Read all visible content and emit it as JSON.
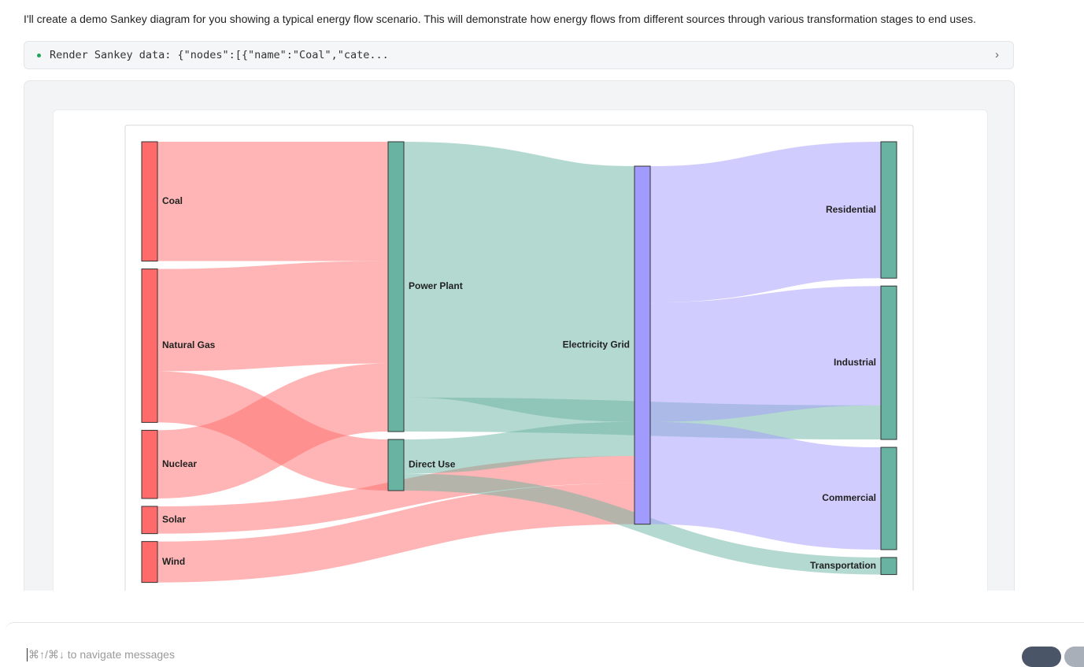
{
  "message": {
    "text": "I'll create a demo Sankey diagram for you showing a typical energy flow scenario. This will demonstrate how energy flows from different sources through various transformation stages to end uses."
  },
  "tool_call": {
    "label": "Render Sankey data: {\"nodes\":[{\"name\":\"Coal\",\"cate..."
  },
  "sankey": {
    "nodes": [
      {
        "name": "Coal",
        "color": "#ff6b6b",
        "column": 0
      },
      {
        "name": "Natural Gas",
        "color": "#ff6b6b",
        "column": 0
      },
      {
        "name": "Nuclear",
        "color": "#ff6b6b",
        "column": 0
      },
      {
        "name": "Solar",
        "color": "#ff6b6b",
        "column": 0
      },
      {
        "name": "Wind",
        "color": "#ff6b6b",
        "column": 0
      },
      {
        "name": "Power Plant",
        "color": "#69b3a2",
        "column": 1
      },
      {
        "name": "Direct Use",
        "color": "#69b3a2",
        "column": 1
      },
      {
        "name": "Electricity Grid",
        "color": "#a29bfe",
        "column": 2
      },
      {
        "name": "Residential",
        "color": "#69b3a2",
        "column": 3
      },
      {
        "name": "Industrial",
        "color": "#69b3a2",
        "column": 3
      },
      {
        "name": "Commercial",
        "color": "#69b3a2",
        "column": 3
      },
      {
        "name": "Transportation",
        "color": "#69b3a2",
        "column": 3
      }
    ],
    "links": [
      {
        "source": 0,
        "target": 5,
        "value": 35
      },
      {
        "source": 1,
        "target": 5,
        "value": 30
      },
      {
        "source": 1,
        "target": 6,
        "value": 15
      },
      {
        "source": 2,
        "target": 5,
        "value": 20
      },
      {
        "source": 3,
        "target": 7,
        "value": 8
      },
      {
        "source": 4,
        "target": 7,
        "value": 12
      },
      {
        "source": 5,
        "target": 7,
        "value": 75
      },
      {
        "source": 5,
        "target": 9,
        "value": 10
      },
      {
        "source": 6,
        "target": 7,
        "value": 10
      },
      {
        "source": 6,
        "target": 11,
        "value": 5
      },
      {
        "source": 7,
        "target": 8,
        "value": 40
      },
      {
        "source": 7,
        "target": 9,
        "value": 35
      },
      {
        "source": 7,
        "target": 10,
        "value": 30
      }
    ]
  },
  "input": {
    "placeholder": "⌘↑/⌘↓ to navigate messages"
  }
}
